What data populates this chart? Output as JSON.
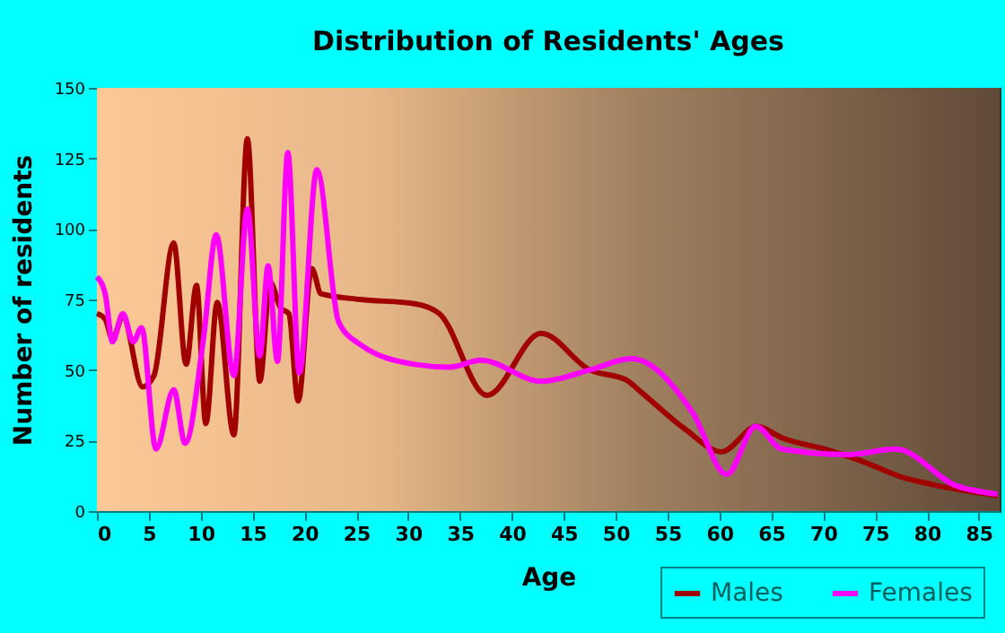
{
  "chart_data": {
    "type": "line",
    "title": "Distribution of Residents' Ages",
    "xlabel": "Age",
    "ylabel": "Number of residents",
    "xlim": [
      0,
      87
    ],
    "xticks": [
      0,
      5,
      10,
      15,
      20,
      25,
      30,
      35,
      40,
      45,
      50,
      55,
      60,
      65,
      70,
      75,
      80,
      85
    ],
    "ylim": [
      0,
      150
    ],
    "yticks": [
      0,
      25,
      50,
      75,
      100,
      125,
      150
    ],
    "grid": true,
    "legend": "bottom",
    "marker": "none",
    "line_style": "solid",
    "series": [
      {
        "name": "Males",
        "color": "#a00000",
        "x": [
          0,
          0.8,
          1.5,
          2.5,
          4.4,
          5.5,
          7.4,
          8.6,
          9.6,
          10.5,
          11.6,
          13.2,
          14.5,
          15.7,
          16.7,
          17.7,
          18.5,
          19.4,
          20.7,
          21.6,
          25.4,
          30.6,
          33,
          37.6,
          42.8,
          47.5,
          51,
          52.5,
          56.7,
          60.2,
          63.6,
          66,
          70.6,
          73.5,
          77.6,
          81,
          86.8
        ],
        "values": [
          70,
          68,
          61,
          69,
          44,
          48,
          95,
          52,
          80,
          31,
          74,
          27,
          132,
          46,
          81,
          72,
          70,
          39,
          86,
          77,
          75,
          73.5,
          70,
          41,
          63,
          50,
          46.5,
          42,
          29,
          21,
          30,
          26,
          21.5,
          18,
          12,
          9,
          5.5
        ]
      },
      {
        "name": "Females",
        "color": "#ff00ff",
        "x": [
          0,
          0.8,
          1.5,
          2.5,
          3.5,
          4.3,
          5.7,
          7.4,
          8.5,
          10.3,
          11.5,
          13.2,
          14.5,
          15.7,
          16.5,
          17.4,
          18.4,
          19.5,
          21.2,
          23.3,
          25.4,
          30.6,
          34,
          37,
          42.8,
          47.5,
          51.5,
          57.4,
          60.7,
          63.5,
          66,
          72.3,
          77,
          82.8,
          86.8
        ],
        "values": [
          83,
          77,
          60,
          70,
          60,
          65,
          22,
          43,
          24,
          62,
          98,
          48,
          107,
          55,
          87,
          53,
          127,
          49,
          121,
          67,
          59,
          52,
          51,
          53.5,
          46,
          50,
          54,
          35,
          13,
          30,
          22,
          20,
          22,
          9,
          6
        ]
      }
    ]
  }
}
